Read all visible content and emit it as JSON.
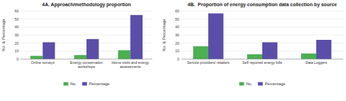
{
  "chart_data": [
    {
      "type": "bar",
      "title": "4A. Approach/methodology proportion",
      "categories": [
        "Online surveys",
        "Energy conservation\nworkshops",
        "Home visits and energy\nassessments"
      ],
      "series": [
        {
          "name": "No.",
          "color": "#4caf50",
          "values": [
            4,
            5,
            11
          ]
        },
        {
          "name": "Percentage",
          "color": "#5b4ea8",
          "values": [
            21,
            25,
            55
          ]
        }
      ],
      "y_label": "No. & Percentage",
      "ylim": [
        0,
        60
      ],
      "yticks": [
        0,
        10,
        20,
        30,
        40,
        50,
        60
      ],
      "grid": true,
      "legend": "bottom"
    },
    {
      "type": "bar",
      "title": "4B.  Proportion of energy consumption data collection by source",
      "categories": [
        "Service providers/ retailers",
        "Self reported energy bills",
        "Data Loggers"
      ],
      "series": [
        {
          "name": "No.",
          "color": "#4caf50",
          "values": [
            16,
            6,
            7
          ]
        },
        {
          "name": "Percentage",
          "color": "#5b4ea8",
          "values": [
            57,
            21,
            24
          ]
        }
      ],
      "y_label": "No. & Percentage",
      "ylim": [
        0,
        60
      ],
      "yticks": [
        0,
        10,
        20,
        30,
        40,
        50,
        60
      ],
      "grid": true,
      "legend": "bottom"
    }
  ]
}
